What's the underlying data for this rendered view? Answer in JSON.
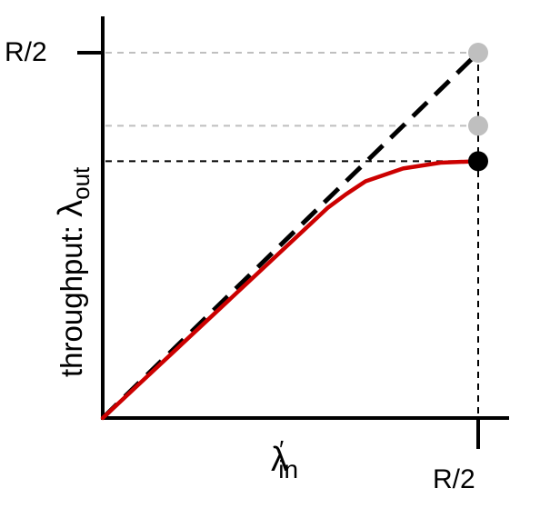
{
  "colors": {
    "background": "#ffffff",
    "axis": "#000000",
    "curve": "#cc0000",
    "ideal_line": "#000000",
    "ref_gray": "#bfbfbf",
    "guide_black": "#000000"
  },
  "labels": {
    "y_tick": "R/2",
    "x_tick": "R/2",
    "y_axis_prefix": "throughput: ",
    "y_axis_symbol": "λ",
    "y_axis_subscript": "out",
    "x_axis_symbol": "λ",
    "x_axis_prime": "′",
    "x_axis_subscript": "in"
  },
  "chart_data": {
    "type": "line",
    "xlabel": "λ′in",
    "ylabel": "throughput: λout",
    "xlim": [
      0,
      1
    ],
    "ylim": [
      0,
      1
    ],
    "x_ticks": [
      {
        "value": 1,
        "label": "R/2"
      }
    ],
    "y_ticks": [
      {
        "value": 1,
        "label": "R/2"
      }
    ],
    "grid": false,
    "series": [
      {
        "style": "dashed-black",
        "x": [
          0,
          1
        ],
        "y": [
          0,
          1
        ]
      },
      {
        "style": "solid-red",
        "x": [
          0,
          0.1,
          0.2,
          0.3,
          0.4,
          0.5,
          0.6,
          0.65,
          0.7,
          0.8,
          0.9,
          1.0
        ],
        "y": [
          0,
          0.096,
          0.192,
          0.288,
          0.384,
          0.48,
          0.576,
          0.614,
          0.648,
          0.683,
          0.699,
          0.703
        ]
      }
    ],
    "markers": [
      {
        "x": 1,
        "y": 1,
        "color": "#bfbfbf"
      },
      {
        "x": 1,
        "y": 0.8,
        "color": "#bfbfbf"
      },
      {
        "x": 1,
        "y": 0.703,
        "color": "#000000"
      }
    ],
    "reference_lines": [
      {
        "y": 1,
        "color": "#bfbfbf"
      },
      {
        "y": 0.8,
        "color": "#bfbfbf"
      },
      {
        "y": 0.703,
        "color": "#000000"
      },
      {
        "x": 1,
        "color": "#000000"
      }
    ]
  }
}
